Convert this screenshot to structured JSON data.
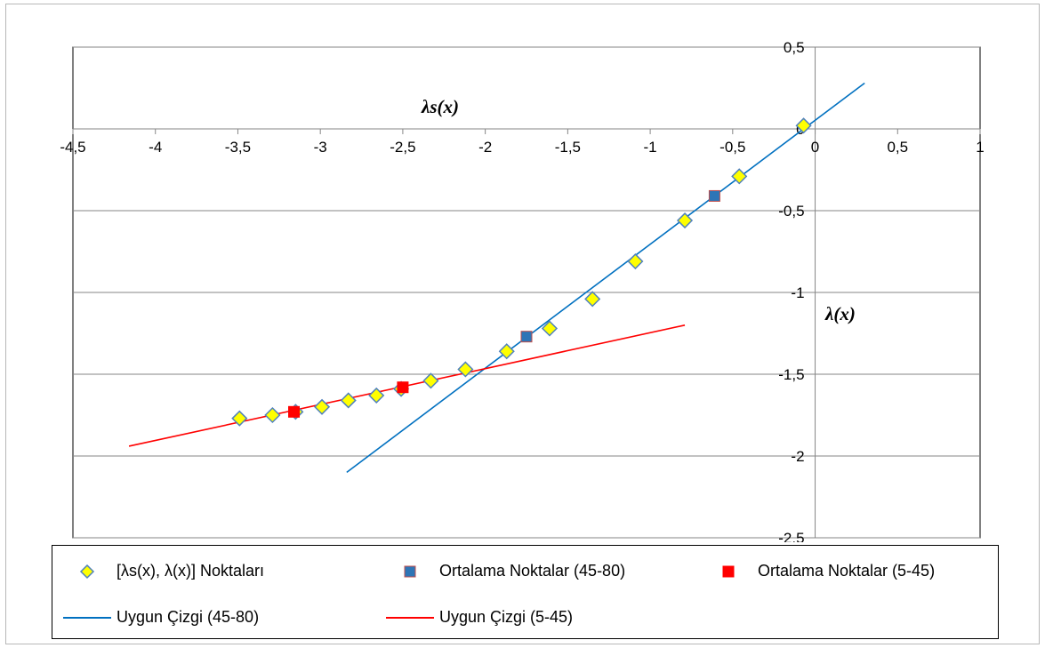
{
  "chart_data": {
    "type": "scatter",
    "title": "",
    "xlabel": "λs(x)",
    "ylabel": "λ(x)",
    "xlim": [
      -4.5,
      1
    ],
    "ylim": [
      -2.5,
      0.5
    ],
    "x_ticks": [
      "-4,5",
      "-4",
      "-3,5",
      "-3",
      "-2,5",
      "-2",
      "-1,5",
      "-1",
      "-0,5",
      "0",
      "0,5",
      "1"
    ],
    "x_tick_values": [
      -4.5,
      -4,
      -3.5,
      -3,
      -2.5,
      -2,
      -1.5,
      -1,
      -0.5,
      0,
      0.5,
      1
    ],
    "y_ticks": [
      "0,5",
      "0",
      "-0,5",
      "-1",
      "-1,5",
      "-2",
      "-2,5"
    ],
    "y_tick_values": [
      0.5,
      0,
      -0.5,
      -1,
      -1.5,
      -2,
      -2.5
    ],
    "grid": "horizontal",
    "legend_position": "bottom",
    "series": [
      {
        "name": "[λs(x), λ(x)] Noktaları",
        "kind": "points",
        "marker": "diamond",
        "color": "#ffff00",
        "edge_color": "#4f81bd",
        "points": [
          [
            -3.49,
            -1.77
          ],
          [
            -3.29,
            -1.75
          ],
          [
            -3.15,
            -1.73
          ],
          [
            -2.99,
            -1.7
          ],
          [
            -2.83,
            -1.66
          ],
          [
            -2.66,
            -1.63
          ],
          [
            -2.51,
            -1.59
          ],
          [
            -2.33,
            -1.54
          ],
          [
            -2.12,
            -1.47
          ],
          [
            -1.87,
            -1.36
          ],
          [
            -1.61,
            -1.22
          ],
          [
            -1.35,
            -1.04
          ],
          [
            -1.09,
            -0.81
          ],
          [
            -0.79,
            -0.56
          ],
          [
            -0.46,
            -0.29
          ],
          [
            -0.07,
            0.02
          ]
        ]
      },
      {
        "name": "Ortalama Noktalar (45-80)",
        "kind": "points",
        "marker": "square",
        "color": "#2e75b6",
        "edge_color": "#c0504d",
        "points": [
          [
            -1.75,
            -1.27
          ],
          [
            -0.61,
            -0.41
          ]
        ]
      },
      {
        "name": "Ortalama Noktalar (5-45)",
        "kind": "points",
        "marker": "square",
        "color": "#ff0000",
        "edge_color": "#ff0000",
        "points": [
          [
            -3.16,
            -1.73
          ],
          [
            -2.5,
            -1.58
          ]
        ]
      },
      {
        "name": "Uygun Çizgi (45-80)",
        "kind": "line",
        "color": "#0070c0",
        "points": [
          [
            -2.84,
            -2.1
          ],
          [
            0.3,
            0.28
          ]
        ]
      },
      {
        "name": "Uygun Çizgi (5-45)",
        "kind": "line",
        "color": "#ff0000",
        "points": [
          [
            -4.16,
            -1.94
          ],
          [
            -0.79,
            -1.2
          ]
        ]
      }
    ]
  },
  "legend": {
    "items": [
      {
        "label": "[λs(x), λ(x)] Noktaları"
      },
      {
        "label": "Ortalama Noktalar (45-80)"
      },
      {
        "label": "Ortalama Noktalar (5-45)"
      },
      {
        "label": "Uygun Çizgi (45-80)"
      },
      {
        "label": "Uygun Çizgi (5-45)"
      }
    ]
  }
}
